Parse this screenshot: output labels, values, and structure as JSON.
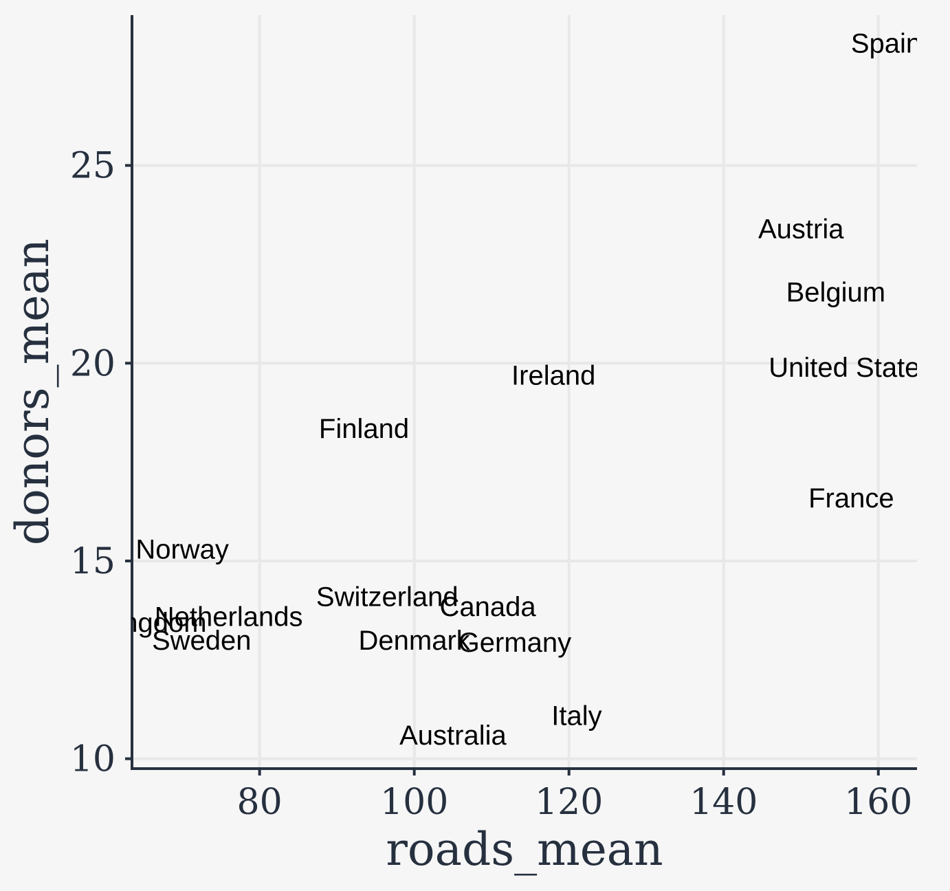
{
  "chart_data": {
    "type": "scatter",
    "title": "",
    "xlabel": "roads_mean",
    "ylabel": "donors_mean",
    "xlim": [
      63.5,
      165
    ],
    "ylim": [
      9.75,
      28.8
    ],
    "x_ticks": [
      80,
      100,
      120,
      140,
      160
    ],
    "y_ticks": [
      10,
      15,
      20,
      25
    ],
    "grid": true,
    "marker": "text labels",
    "points": [
      {
        "label": "Spain",
        "x": 161,
        "y": 28.1
      },
      {
        "label": "Austria",
        "x": 150,
        "y": 23.4
      },
      {
        "label": "Belgium",
        "x": 154.5,
        "y": 21.8
      },
      {
        "label": "United States",
        "x": 156.5,
        "y": 19.9
      },
      {
        "label": "Ireland",
        "x": 118,
        "y": 19.7
      },
      {
        "label": "Finland",
        "x": 93.5,
        "y": 18.35
      },
      {
        "label": "France",
        "x": 156.5,
        "y": 16.6
      },
      {
        "label": "Norway",
        "x": 70,
        "y": 15.3
      },
      {
        "label": "Switzerland",
        "x": 96.5,
        "y": 14.1
      },
      {
        "label": "Canada",
        "x": 109.5,
        "y": 13.85
      },
      {
        "label": "Netherlands",
        "x": 76,
        "y": 13.6
      },
      {
        "label": "United Kingdom",
        "x": 60.5,
        "y": 13.45
      },
      {
        "label": "Sweden",
        "x": 72.5,
        "y": 13.0
      },
      {
        "label": "Denmark",
        "x": 100,
        "y": 13.0
      },
      {
        "label": "Germany",
        "x": 113,
        "y": 12.95
      },
      {
        "label": "Italy",
        "x": 121,
        "y": 11.1
      },
      {
        "label": "Australia",
        "x": 105,
        "y": 10.6
      }
    ]
  },
  "colors": {
    "background": "#f6f6f6",
    "grid": "#e8e8e8",
    "axis": "#26303f",
    "text": "#000000"
  }
}
